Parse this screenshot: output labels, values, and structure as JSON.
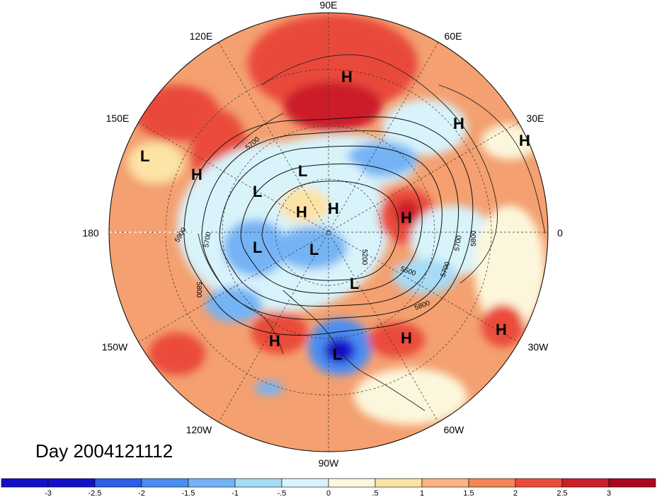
{
  "title": "Day 2004121112",
  "longitude_labels": [
    "90E",
    "120E",
    "60E",
    "150E",
    "30E",
    "180",
    "0",
    "150W",
    "30W",
    "120W",
    "60W",
    "90W"
  ],
  "pressure_centers": [
    "H",
    "H",
    "H",
    "L",
    "H",
    "L",
    "L",
    "L",
    "H",
    "H",
    "H",
    "L",
    "L",
    "L",
    "H",
    "H",
    "H"
  ],
  "contour_labels": [
    "5700",
    "5900",
    "5700",
    "5800",
    "5200",
    "5800",
    "5700",
    "5500",
    "5700",
    "5800"
  ],
  "colorbar": {
    "ticks": [
      "-3",
      "-2.5",
      "-2",
      "-1.5",
      "-1",
      "-.5",
      "0",
      ".5",
      "1",
      "1.5",
      "2",
      "2.5",
      "3"
    ],
    "colors": [
      "#1410c8",
      "#2a5fe6",
      "#4b8df0",
      "#74b4f4",
      "#a6dcf6",
      "#d8f3fa",
      "#fcf7dc",
      "#fce3a6",
      "#f8b483",
      "#f28656",
      "#ea4c3a",
      "#cc1f2a",
      "#a8091c"
    ]
  },
  "colors": {
    "land_outline": "#222222",
    "grid": "#333333",
    "background_anomaly": "#f4a070"
  }
}
